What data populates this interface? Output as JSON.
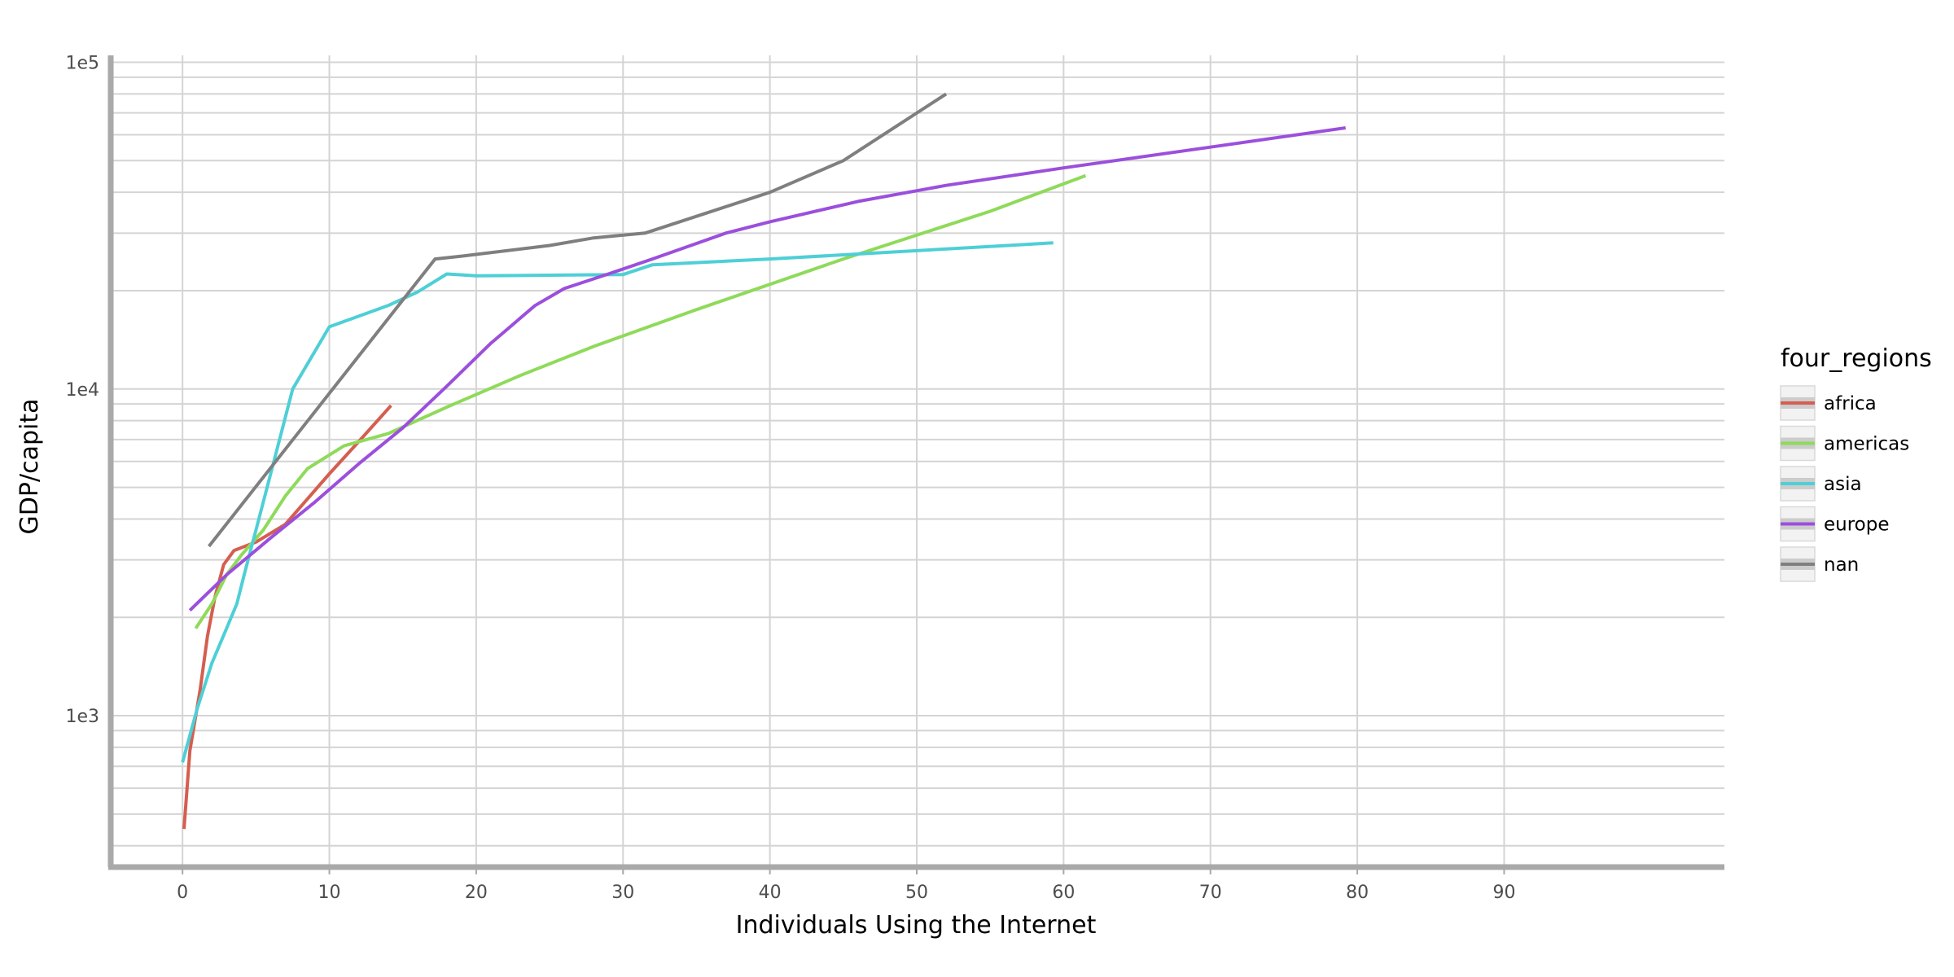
{
  "chart_data": {
    "type": "line",
    "xlabel": "Individuals Using the Internet",
    "ylabel": "GDP/capita",
    "xlim": [
      -5,
      105
    ],
    "ylim": [
      350,
      105000
    ],
    "y_scale": "log",
    "x_ticks": [
      0,
      10,
      20,
      30,
      40,
      50,
      60,
      70,
      80,
      90
    ],
    "x_tick_labels": [
      "0",
      "10",
      "20",
      "30",
      "40",
      "50",
      "60",
      "70",
      "80",
      "90"
    ],
    "y_ticks": [
      1000,
      10000,
      100000
    ],
    "y_tick_labels": [
      "1e3",
      "1e4",
      "1e5"
    ],
    "grid": true,
    "legend": {
      "title": "four_regions",
      "placement": "right"
    },
    "series": [
      {
        "name": "africa",
        "color": "#D55E4F",
        "points": [
          [
            0.1,
            450
          ],
          [
            0.5,
            780
          ],
          [
            1.2,
            1200
          ],
          [
            1.7,
            1750
          ],
          [
            2.2,
            2300
          ],
          [
            2.8,
            2900
          ],
          [
            3.5,
            3200
          ],
          [
            5,
            3400
          ],
          [
            7,
            3850
          ],
          [
            10,
            5500
          ],
          [
            12,
            6900
          ],
          [
            14.2,
            8900
          ]
        ]
      },
      {
        "name": "americas",
        "color": "#8FDA5A",
        "points": [
          [
            0.9,
            1850
          ],
          [
            2,
            2200
          ],
          [
            3,
            2700
          ],
          [
            4,
            3100
          ],
          [
            5.5,
            3700
          ],
          [
            7,
            4700
          ],
          [
            8.5,
            5700
          ],
          [
            11,
            6700
          ],
          [
            14,
            7300
          ],
          [
            18,
            8800
          ],
          [
            23,
            11000
          ],
          [
            28,
            13500
          ],
          [
            35,
            17500
          ],
          [
            45,
            25000
          ],
          [
            55,
            35000
          ],
          [
            61.5,
            45000
          ]
        ]
      },
      {
        "name": "asia",
        "color": "#4ECFD6",
        "points": [
          [
            0,
            720
          ],
          [
            1,
            1050
          ],
          [
            2,
            1450
          ],
          [
            3,
            1850
          ],
          [
            3.7,
            2200
          ],
          [
            4.2,
            2700
          ],
          [
            5,
            3700
          ],
          [
            6,
            5500
          ],
          [
            7.5,
            10000
          ],
          [
            10,
            15500
          ],
          [
            14,
            18000
          ],
          [
            16,
            19800
          ],
          [
            18,
            22500
          ],
          [
            20,
            22200
          ],
          [
            25,
            22300
          ],
          [
            30,
            22400
          ],
          [
            32,
            24000
          ],
          [
            40,
            25000
          ],
          [
            50,
            26500
          ],
          [
            59.3,
            28000
          ]
        ]
      },
      {
        "name": "europe",
        "color": "#9B4FDC",
        "points": [
          [
            0.5,
            2100
          ],
          [
            3,
            2700
          ],
          [
            6,
            3500
          ],
          [
            9,
            4500
          ],
          [
            12,
            5900
          ],
          [
            15,
            7600
          ],
          [
            18,
            10200
          ],
          [
            21,
            13800
          ],
          [
            24,
            18000
          ],
          [
            26,
            20300
          ],
          [
            29,
            22500
          ],
          [
            32,
            25000
          ],
          [
            37,
            30000
          ],
          [
            40,
            32500
          ],
          [
            46,
            37500
          ],
          [
            52,
            42000
          ],
          [
            60,
            47500
          ],
          [
            70,
            55000
          ],
          [
            79.2,
            63000
          ]
        ]
      },
      {
        "name": "nan",
        "color": "#7F7F7F",
        "points": [
          [
            1.8,
            3300
          ],
          [
            17.2,
            25000
          ],
          [
            19,
            25500
          ],
          [
            25,
            27500
          ],
          [
            28,
            29000
          ],
          [
            31.5,
            30000
          ],
          [
            40,
            40000
          ],
          [
            45,
            50000
          ],
          [
            52,
            80000
          ]
        ]
      }
    ]
  }
}
